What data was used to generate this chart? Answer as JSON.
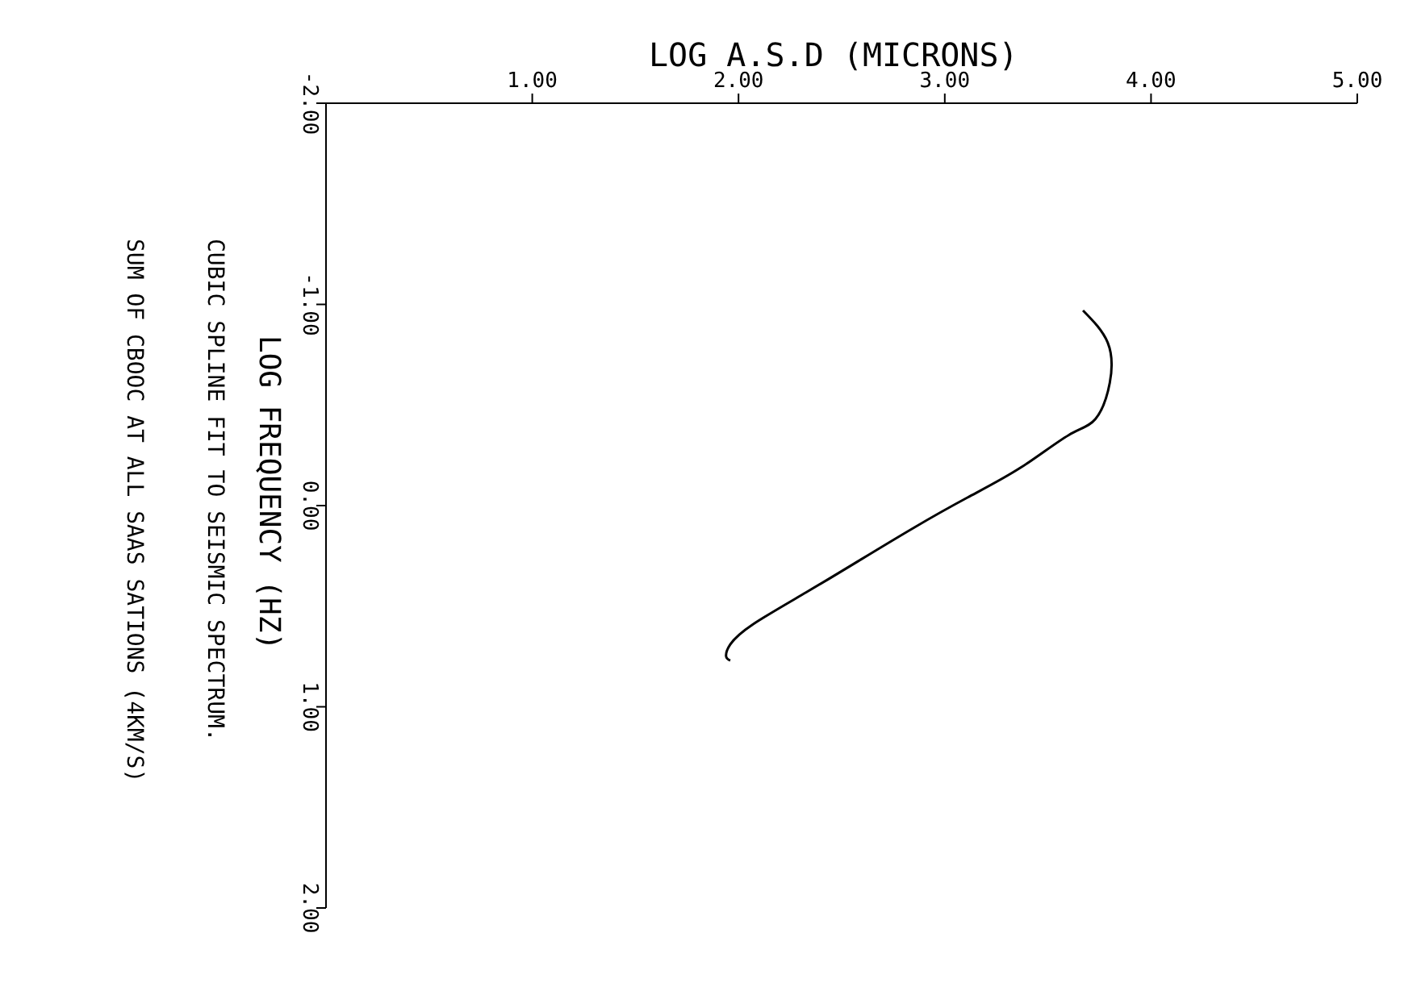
{
  "chart_data": {
    "type": "line",
    "title": "CUBIC SPLINE FIT TO SEISMIC SPECTRUM.",
    "subtitle": "SUM OF CBOOC AT ALL SAAS SATIONS (4KM/S)",
    "xlabel": "LOG A.S.D (MICRONS)",
    "ylabel": "LOG FREQUENCY (HZ)",
    "series": [
      {
        "color": "#000000",
        "x": [
          3.67,
          3.79,
          3.8,
          3.73,
          3.6,
          3.37,
          3.11,
          2.85,
          2.59,
          2.33,
          2.07,
          1.96,
          1.94,
          1.96
        ],
        "values": [
          -0.97,
          -0.81,
          -0.61,
          -0.43,
          -0.35,
          -0.19,
          -0.04,
          0.11,
          0.27,
          0.43,
          0.59,
          0.69,
          0.75,
          0.77
        ]
      }
    ],
    "xlim": [
      0,
      5
    ],
    "xticks": [
      {
        "value": 1,
        "label": "1.00"
      },
      {
        "value": 2,
        "label": "2.00"
      },
      {
        "value": 3,
        "label": "3.00"
      },
      {
        "value": 4,
        "label": "4.00"
      },
      {
        "value": 5,
        "label": "5.00"
      }
    ],
    "ylim": [
      2,
      -2
    ],
    "yticks": [
      {
        "value": -2,
        "label": "-2.00"
      },
      {
        "value": -1,
        "label": "-1.00"
      },
      {
        "value": 0,
        "label": "0.00"
      },
      {
        "value": 1,
        "label": "1.00"
      },
      {
        "value": 2,
        "label": "2.00"
      }
    ]
  }
}
